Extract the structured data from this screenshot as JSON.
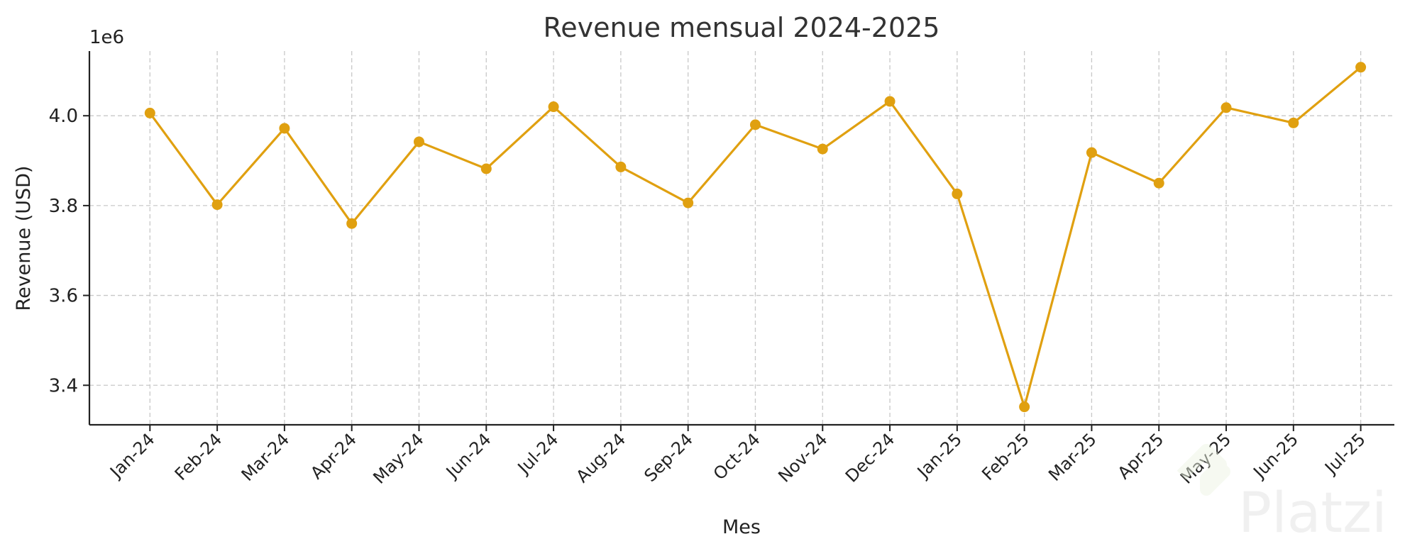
{
  "chart_data": {
    "type": "line",
    "title": "Revenue mensual 2024-2025",
    "xlabel": "Mes",
    "ylabel": "Revenue (USD)",
    "y_offset_label": "1e6",
    "categories": [
      "Jan-24",
      "Feb-24",
      "Mar-24",
      "Apr-24",
      "May-24",
      "Jun-24",
      "Jul-24",
      "Aug-24",
      "Sep-24",
      "Oct-24",
      "Nov-24",
      "Dec-24",
      "Jan-25",
      "Feb-25",
      "Mar-25",
      "Apr-25",
      "May-25",
      "Jun-25",
      "Jul-25"
    ],
    "series": [
      {
        "name": "Revenue",
        "color": "#E0A010",
        "values": [
          4.006,
          3.802,
          3.972,
          3.76,
          3.942,
          3.882,
          4.02,
          3.886,
          3.806,
          3.98,
          3.926,
          4.032,
          3.826,
          3.352,
          3.918,
          3.85,
          4.018,
          3.984,
          4.108
        ]
      }
    ],
    "y_unit_multiplier": 1000000,
    "yticks": [
      3.4,
      3.6,
      3.8,
      4.0
    ],
    "ytick_labels": [
      "3.4",
      "3.6",
      "3.8",
      "4.0"
    ],
    "ylim": [
      3.312,
      4.144
    ],
    "xlim": [
      -0.9,
      18.5
    ],
    "grid": true
  },
  "watermark": "Platzi"
}
